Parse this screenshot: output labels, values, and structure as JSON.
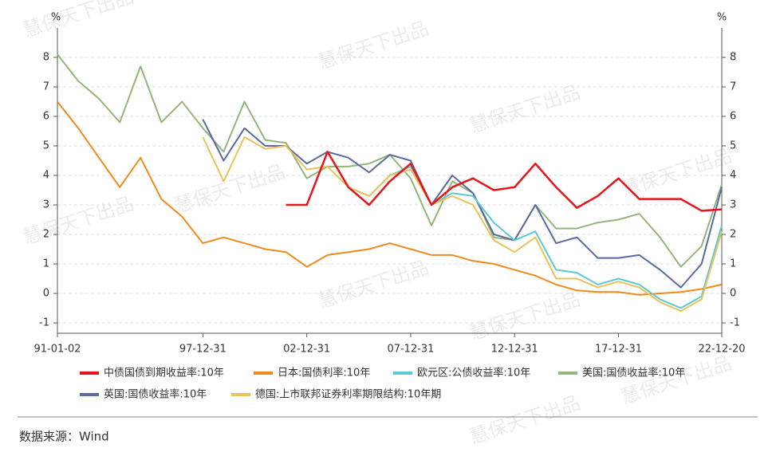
{
  "chart_data": {
    "type": "line",
    "x": [
      1991,
      1992,
      1993,
      1994,
      1995,
      1996,
      1997,
      1998,
      1999,
      2000,
      2001,
      2002,
      2003,
      2004,
      2005,
      2006,
      2007,
      2008,
      2009,
      2010,
      2011,
      2012,
      2013,
      2014,
      2015,
      2016,
      2017,
      2018,
      2019,
      2020,
      2021,
      2022,
      2022.97
    ],
    "xlim": [
      1991,
      2022.97
    ],
    "xticks": [
      {
        "value": 1991,
        "label": "91-01-02"
      },
      {
        "value": 1998,
        "label": "97-12-31"
      },
      {
        "value": 2003,
        "label": "02-12-31"
      },
      {
        "value": 2008,
        "label": "07-12-31"
      },
      {
        "value": 2013,
        "label": "12-12-31"
      },
      {
        "value": 2018,
        "label": "17-12-31"
      },
      {
        "value": 2022.97,
        "label": "22-12-20"
      }
    ],
    "ylim": [
      -1.35,
      9
    ],
    "yticks": [
      -1,
      0,
      1,
      2,
      3,
      4,
      5,
      6,
      7,
      8
    ],
    "y2lim": [
      -1.35,
      9
    ],
    "y2ticks": [
      -1,
      0,
      1,
      2,
      3,
      4,
      5,
      6,
      7,
      8
    ],
    "y_label": "%",
    "y2_label": "%",
    "grid": true,
    "series": [
      {
        "name": "中债国债到期收益率:10年",
        "color": "#e8141b",
        "values": [
          null,
          null,
          null,
          null,
          null,
          null,
          null,
          null,
          null,
          null,
          null,
          3.0,
          3.0,
          4.8,
          3.6,
          3.0,
          3.8,
          4.4,
          3.0,
          3.6,
          3.9,
          3.5,
          3.6,
          4.4,
          3.6,
          2.9,
          3.3,
          3.9,
          3.2,
          3.2,
          3.2,
          2.8,
          2.85
        ]
      },
      {
        "name": "日本:国债利率:10年",
        "color": "#f08a1c",
        "values": [
          6.5,
          5.6,
          4.6,
          3.6,
          4.6,
          3.2,
          2.6,
          1.7,
          1.9,
          1.7,
          1.5,
          1.4,
          0.9,
          1.3,
          1.4,
          1.5,
          1.7,
          1.5,
          1.3,
          1.3,
          1.1,
          1.0,
          0.8,
          0.6,
          0.3,
          0.1,
          0.05,
          0.05,
          -0.05,
          0.0,
          0.05,
          0.15,
          0.3
        ]
      },
      {
        "name": "欧元区:公债收益率:10年",
        "color": "#5bc8d6",
        "values": [
          null,
          null,
          null,
          null,
          null,
          null,
          null,
          null,
          null,
          null,
          null,
          null,
          null,
          null,
          3.6,
          3.3,
          4.0,
          4.3,
          3.0,
          3.4,
          3.3,
          2.4,
          1.8,
          2.1,
          0.8,
          0.7,
          0.3,
          0.5,
          0.3,
          -0.2,
          -0.5,
          -0.1,
          2.3
        ]
      },
      {
        "name": "美国:国债收益率:10年",
        "color": "#93b57a",
        "values": [
          8.1,
          7.2,
          6.6,
          5.8,
          7.7,
          5.8,
          6.5,
          5.6,
          4.8,
          6.5,
          5.2,
          5.1,
          3.9,
          4.3,
          4.3,
          4.4,
          4.7,
          3.9,
          2.3,
          3.8,
          3.4,
          1.9,
          1.8,
          3.0,
          2.2,
          2.2,
          2.4,
          2.5,
          2.7,
          1.9,
          0.9,
          1.6,
          3.7
        ]
      },
      {
        "name": "英国:国债收益率:10年",
        "color": "#5a6aa0",
        "values": [
          null,
          null,
          null,
          null,
          null,
          null,
          null,
          5.9,
          4.5,
          5.6,
          5.0,
          5.0,
          4.4,
          4.8,
          4.6,
          4.1,
          4.7,
          4.5,
          3.0,
          4.0,
          3.4,
          2.0,
          1.8,
          3.0,
          1.7,
          1.9,
          1.2,
          1.2,
          1.3,
          0.8,
          0.2,
          1.0,
          3.6
        ]
      },
      {
        "name": "德国:上市联邦证券利率期限结构:10年期",
        "color": "#e8c25a",
        "values": [
          null,
          null,
          null,
          null,
          null,
          null,
          null,
          5.3,
          3.8,
          5.3,
          4.9,
          5.0,
          4.2,
          4.3,
          3.6,
          3.3,
          4.0,
          4.2,
          3.0,
          3.3,
          3.0,
          1.8,
          1.4,
          1.9,
          0.5,
          0.5,
          0.2,
          0.4,
          0.2,
          -0.3,
          -0.6,
          -0.2,
          2.1
        ]
      }
    ],
    "source": "数据来源：Wind",
    "watermark": "慧保天下出品"
  }
}
